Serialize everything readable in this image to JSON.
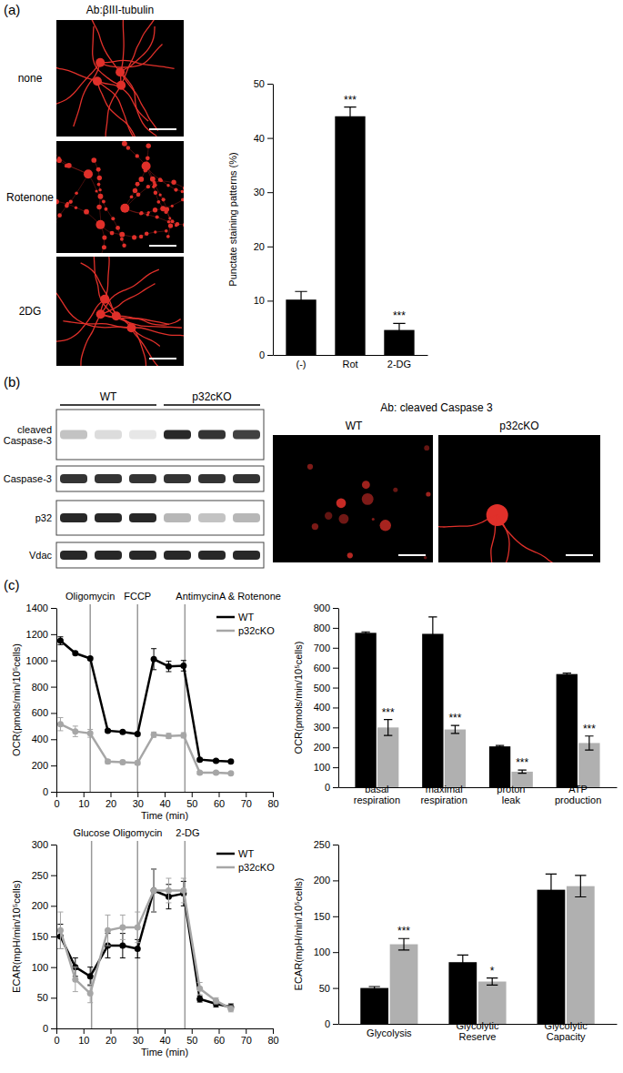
{
  "chart_data": [
    {
      "type": "bar",
      "y_label": "Punctate staining patterns (%)",
      "categories": [
        "(-)",
        "Rot",
        "2-DG"
      ],
      "values": [
        10.2,
        44.0,
        4.6
      ],
      "errors": [
        1.5,
        1.7,
        1.2
      ],
      "significance": [
        null,
        "***",
        "***"
      ],
      "color": "#000000",
      "ylim": [
        0,
        50
      ],
      "yticks": [
        0,
        10,
        20,
        30,
        40,
        50
      ]
    },
    {
      "type": "line",
      "x_label": "Time (min)",
      "y_label": "OCR(pmols/min/10⁵cells)",
      "x": [
        1.5,
        7,
        12.5,
        19,
        24.5,
        30,
        36,
        41.5,
        47,
        53,
        59,
        64.5
      ],
      "xlim": [
        0,
        80
      ],
      "xticks": [
        0,
        10,
        20,
        30,
        40,
        50,
        60,
        70,
        80
      ],
      "ylim": [
        0,
        1400
      ],
      "yticks": [
        0,
        200,
        400,
        600,
        800,
        1000,
        1200,
        1400
      ],
      "annotations": [
        {
          "x": 12.5,
          "label": "Oligomycin"
        },
        {
          "x": 30,
          "label": "FCCP"
        },
        {
          "x": 47.5,
          "label": "AntimycinA & Rotenone"
        }
      ],
      "legend": "upper right",
      "marker": "circle",
      "series": [
        {
          "name": "WT",
          "color": "#000000",
          "values": [
            1150,
            1055,
            1015,
            465,
            455,
            440,
            1010,
            955,
            960,
            245,
            235,
            230
          ],
          "errors": [
            30,
            10,
            10,
            10,
            10,
            10,
            80,
            40,
            40,
            10,
            10,
            10
          ]
        },
        {
          "name": "p32cKO",
          "color": "#a6a6a6",
          "values": [
            515,
            460,
            445,
            230,
            225,
            220,
            435,
            425,
            430,
            145,
            145,
            140
          ],
          "errors": [
            50,
            40,
            30,
            15,
            15,
            15,
            20,
            20,
            20,
            10,
            10,
            10
          ]
        }
      ]
    },
    {
      "type": "bar",
      "y_label": "OCR(pmols/min/10⁵cells)",
      "categories": [
        "basal respiration",
        "maximal respiration",
        "proton leak",
        "ATP production"
      ],
      "ylim": [
        0,
        900
      ],
      "yticks": [
        0,
        100,
        200,
        300,
        400,
        500,
        600,
        700,
        800,
        900
      ],
      "series": [
        {
          "color": "#000000",
          "values": [
            775,
            770,
            205,
            568
          ],
          "errors": [
            5,
            85,
            5,
            5
          ]
        },
        {
          "color": "#b0b0b0",
          "values": [
            300,
            290,
            78,
            222
          ],
          "errors": [
            40,
            20,
            8,
            35
          ],
          "significance": [
            "***",
            "***",
            "***",
            "***"
          ]
        }
      ]
    },
    {
      "type": "line",
      "x_label": "Time (min)",
      "y_label": "ECAR(mpH/min/10⁵cells)",
      "x": [
        1.5,
        7,
        12.5,
        19,
        24.5,
        30,
        36,
        41.5,
        47,
        53,
        59,
        64.5
      ],
      "xlim": [
        0,
        80
      ],
      "xticks": [
        0,
        10,
        20,
        30,
        40,
        50,
        60,
        70,
        80
      ],
      "ylim": [
        0,
        300
      ],
      "yticks": [
        0,
        50,
        100,
        150,
        200,
        250,
        300
      ],
      "annotations": [
        {
          "x": 13,
          "label": "Glucose"
        },
        {
          "x": 30,
          "label": "Oligomycin"
        },
        {
          "x": 47.5,
          "label": "2-DG"
        }
      ],
      "legend": "upper right",
      "marker": "circle",
      "series": [
        {
          "name": "WT",
          "color": "#000000",
          "values": [
            150,
            100,
            85,
            135,
            135,
            130,
            225,
            215,
            220,
            48,
            40,
            35
          ],
          "errors": [
            20,
            15,
            15,
            20,
            20,
            15,
            35,
            20,
            20,
            5,
            5,
            5
          ]
        },
        {
          "name": "p32cKO",
          "color": "#a6a6a6",
          "values": [
            160,
            80,
            57,
            160,
            165,
            165,
            225,
            225,
            225,
            65,
            45,
            32
          ],
          "errors": [
            30,
            20,
            15,
            25,
            20,
            25,
            35,
            20,
            20,
            10,
            5,
            5
          ]
        }
      ]
    },
    {
      "type": "bar",
      "y_label": "ECAR(mpH/min/10⁵cells)",
      "categories": [
        "Glycolysis",
        "Glycolytic Reserve",
        "Glycolytic Capacity"
      ],
      "ylim": [
        0,
        250
      ],
      "yticks": [
        0,
        50,
        100,
        150,
        200,
        250
      ],
      "series": [
        {
          "color": "#000000",
          "values": [
            50,
            86,
            187
          ],
          "errors": [
            2,
            10,
            22
          ]
        },
        {
          "color": "#b0b0b0",
          "values": [
            111,
            59,
            192
          ],
          "errors": [
            8,
            5,
            15
          ],
          "significance": [
            "***",
            "*",
            null
          ]
        }
      ]
    }
  ],
  "figure": {
    "panel_labels": [
      "(a)",
      "(b)",
      "(c)"
    ],
    "a_images": {
      "header": "Ab:βIII-tubulin",
      "rows": [
        "none",
        "Rotenone",
        "2DG"
      ]
    },
    "b_blot": {
      "groups": [
        "WT",
        "p32cKO"
      ],
      "rows": [
        "cleaved Caspase-3",
        "Caspase-3",
        "p32",
        "Vdac"
      ]
    },
    "b_images": {
      "header": "Ab: cleaved Caspase 3",
      "labels": [
        "WT",
        "p32cKO"
      ]
    }
  }
}
